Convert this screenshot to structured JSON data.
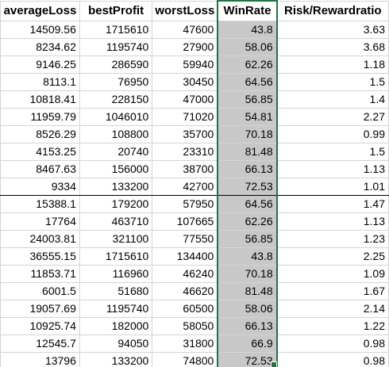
{
  "columns": {
    "c0": "averageLoss",
    "c1": "bestProfit",
    "c2": "worstLoss",
    "c3": "WinRate",
    "c4": "Risk/Rewardratio"
  },
  "rows": [
    {
      "c0": "14509.56",
      "c1": "1715610",
      "c2": "47600",
      "c3": "43.8",
      "c4": "3.63"
    },
    {
      "c0": "8234.62",
      "c1": "1195740",
      "c2": "27900",
      "c3": "58.06",
      "c4": "3.68"
    },
    {
      "c0": "9146.25",
      "c1": "286590",
      "c2": "59940",
      "c3": "62.26",
      "c4": "1.18"
    },
    {
      "c0": "8113.1",
      "c1": "76950",
      "c2": "30450",
      "c3": "64.56",
      "c4": "1.5"
    },
    {
      "c0": "10818.41",
      "c1": "228150",
      "c2": "47000",
      "c3": "56.85",
      "c4": "1.4"
    },
    {
      "c0": "11959.79",
      "c1": "1046010",
      "c2": "71020",
      "c3": "54.81",
      "c4": "2.27"
    },
    {
      "c0": "8526.29",
      "c1": "108800",
      "c2": "35700",
      "c3": "70.18",
      "c4": "0.99"
    },
    {
      "c0": "4153.25",
      "c1": "20740",
      "c2": "23310",
      "c3": "81.48",
      "c4": "1.5"
    },
    {
      "c0": "8467.63",
      "c1": "156000",
      "c2": "38700",
      "c3": "66.13",
      "c4": "1.13"
    },
    {
      "c0": "9334",
      "c1": "133200",
      "c2": "42700",
      "c3": "72.53",
      "c4": "1.01"
    },
    {
      "c0": "15388.1",
      "c1": "179200",
      "c2": "57950",
      "c3": "64.56",
      "c4": "1.47"
    },
    {
      "c0": "17764",
      "c1": "463710",
      "c2": "107665",
      "c3": "62.26",
      "c4": "1.13"
    },
    {
      "c0": "24003.81",
      "c1": "321100",
      "c2": "77550",
      "c3": "56.85",
      "c4": "1.23"
    },
    {
      "c0": "36555.15",
      "c1": "1715610",
      "c2": "134400",
      "c3": "43.8",
      "c4": "2.25"
    },
    {
      "c0": "11853.71",
      "c1": "116960",
      "c2": "46240",
      "c3": "70.18",
      "c4": "1.09"
    },
    {
      "c0": "6001.5",
      "c1": "51680",
      "c2": "46620",
      "c3": "81.48",
      "c4": "1.67"
    },
    {
      "c0": "19057.69",
      "c1": "1195740",
      "c2": "60500",
      "c3": "58.06",
      "c4": "2.14"
    },
    {
      "c0": "10925.74",
      "c1": "182000",
      "c2": "58050",
      "c3": "66.13",
      "c4": "1.22"
    },
    {
      "c0": "12545.7",
      "c1": "94050",
      "c2": "31800",
      "c3": "66.9",
      "c4": "0.98"
    },
    {
      "c0": "13796",
      "c1": "133200",
      "c2": "74800",
      "c3": "72.53",
      "c4": "0.98"
    }
  ]
}
